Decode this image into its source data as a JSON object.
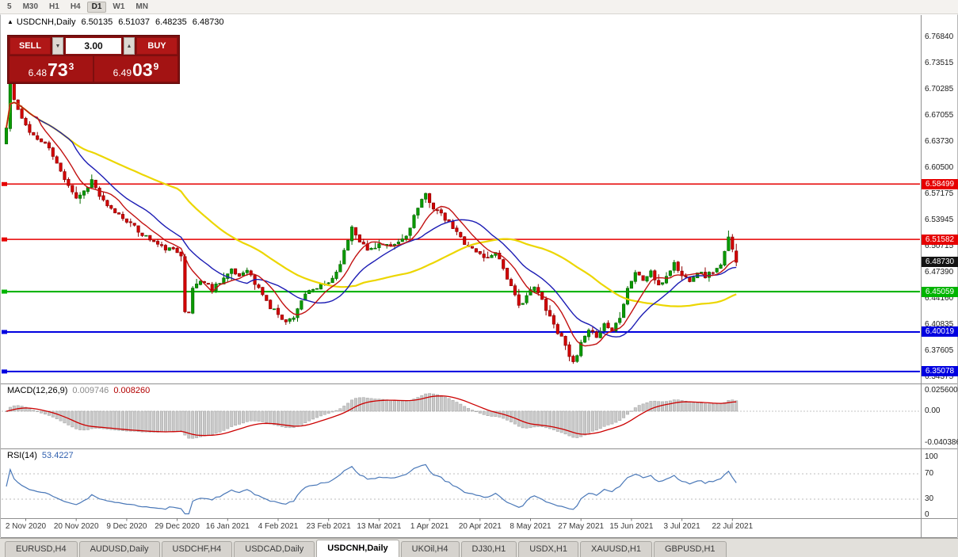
{
  "toolbar": {
    "periods": [
      "5",
      "M30",
      "H1",
      "H4",
      "D1",
      "W1",
      "MN"
    ],
    "active": "D1"
  },
  "chart": {
    "icon": "▲",
    "symbol": "USDCNH,Daily",
    "open": "6.50135",
    "high": "6.51037",
    "low": "6.48235",
    "close": "6.48730"
  },
  "trade_panel": {
    "sell_label": "SELL",
    "buy_label": "BUY",
    "volume": "3.00",
    "spinner_down": "▼",
    "spinner_up": "▲",
    "bid": {
      "prefix": "6.48",
      "big": "73",
      "sup": "3"
    },
    "ask": {
      "prefix": "6.49",
      "big": "03",
      "sup": "9"
    }
  },
  "price_axis": {
    "labels": [
      "6.76840",
      "6.73515",
      "6.70285",
      "6.67055",
      "6.63730",
      "6.60500",
      "6.57175",
      "6.53945",
      "6.50715",
      "6.47390",
      "6.44160",
      "6.40835",
      "6.37605",
      "6.34375"
    ],
    "current_price": "6.48730"
  },
  "hlines": [
    {
      "price": 6.58499,
      "label": "6.58499",
      "color": "#e60000",
      "width": 1.5
    },
    {
      "price": 6.51582,
      "label": "6.51582",
      "color": "#e60000",
      "width": 1.5
    },
    {
      "price": 6.45059,
      "label": "6.45059",
      "color": "#00b400",
      "width": 2.2
    },
    {
      "price": 6.40019,
      "label": "6.40019",
      "color": "#0000e0",
      "width": 2
    },
    {
      "price": 6.35078,
      "label": "6.35078",
      "color": "#0000e0",
      "width": 2
    }
  ],
  "macd": {
    "name": "MACD(12,26,9)",
    "value": "0.009746",
    "signal_value": "0.008260",
    "axis": [
      "0.025600",
      "0.00",
      "-0.040386"
    ]
  },
  "rsi": {
    "name": "RSI(14)",
    "value": "53.4227",
    "axis": [
      "100",
      "70",
      "30",
      "0"
    ]
  },
  "date_axis": [
    "2 Nov 2020",
    "20 Nov 2020",
    "9 Dec 2020",
    "29 Dec 2020",
    "16 Jan 2021",
    "4 Feb 2021",
    "23 Feb 2021",
    "13 Mar 2021",
    "1 Apr 2021",
    "20 Apr 2021",
    "8 May 2021",
    "27 May 2021",
    "15 Jun 2021",
    "3 Jul 2021",
    "22 Jul 2021"
  ],
  "tabs": [
    "EURUSD,H4",
    "AUDUSD,Daily",
    "USDCHF,H4",
    "USDCAD,Daily",
    "USDCNH,Daily",
    "UKOil,H4",
    "DJ30,H1",
    "USDX,H1",
    "XAUUSD,H1",
    "GBPUSD,H1"
  ],
  "active_tab": "USDCNH,Daily",
  "colors": {
    "up": "#0a9b00",
    "up_border": "#076b00",
    "down": "#d40000",
    "down_border": "#8f0000",
    "ma_fast": "#c21111",
    "ma_mid": "#1c1cb4",
    "ma_slow": "#ecd600",
    "macd_bar": "#c9c9c9",
    "macd_signal": "#cc0000",
    "rsi_line": "#4a78b8"
  },
  "chart_data": {
    "type": "candlestick",
    "symbol": "USDCNH",
    "timeframe": "Daily",
    "visible_price_high": 6.7684,
    "visible_price_low": 6.34375,
    "candles_count": 189,
    "last_candle": {
      "open": 6.50135,
      "high": 6.51037,
      "low": 6.48235,
      "close": 6.4873
    },
    "indicators": {
      "macd": [
        12,
        26,
        9
      ],
      "rsi": 14
    },
    "ma_periods": [
      8,
      17,
      45
    ],
    "anchors": [
      [
        0,
        6.655
      ],
      [
        1,
        6.715
      ],
      [
        2,
        6.69
      ],
      [
        4,
        6.665
      ],
      [
        6,
        6.652
      ],
      [
        8,
        6.64
      ],
      [
        10,
        6.636
      ],
      [
        12,
        6.62
      ],
      [
        14,
        6.6
      ],
      [
        16,
        6.585
      ],
      [
        18,
        6.568
      ],
      [
        20,
        6.576
      ],
      [
        22,
        6.59
      ],
      [
        24,
        6.57
      ],
      [
        26,
        6.556
      ],
      [
        28,
        6.55
      ],
      [
        31,
        6.54
      ],
      [
        34,
        6.526
      ],
      [
        37,
        6.516
      ],
      [
        40,
        6.506
      ],
      [
        43,
        6.502
      ],
      [
        45,
        6.498
      ],
      [
        46,
        6.428
      ],
      [
        47,
        6.422
      ],
      [
        48,
        6.455
      ],
      [
        50,
        6.465
      ],
      [
        53,
        6.455
      ],
      [
        56,
        6.468
      ],
      [
        58,
        6.476
      ],
      [
        60,
        6.47
      ],
      [
        62,
        6.48
      ],
      [
        64,
        6.46
      ],
      [
        66,
        6.448
      ],
      [
        68,
        6.43
      ],
      [
        70,
        6.424
      ],
      [
        72,
        6.412
      ],
      [
        74,
        6.42
      ],
      [
        76,
        6.44
      ],
      [
        78,
        6.45
      ],
      [
        80,
        6.455
      ],
      [
        83,
        6.462
      ],
      [
        85,
        6.475
      ],
      [
        87,
        6.5
      ],
      [
        89,
        6.532
      ],
      [
        91,
        6.515
      ],
      [
        93,
        6.502
      ],
      [
        96,
        6.51
      ],
      [
        99,
        6.506
      ],
      [
        101,
        6.512
      ],
      [
        103,
        6.52
      ],
      [
        105,
        6.545
      ],
      [
        107,
        6.563
      ],
      [
        108,
        6.572
      ],
      [
        110,
        6.556
      ],
      [
        112,
        6.546
      ],
      [
        115,
        6.53
      ],
      [
        118,
        6.512
      ],
      [
        121,
        6.5
      ],
      [
        124,
        6.492
      ],
      [
        126,
        6.502
      ],
      [
        128,
        6.48
      ],
      [
        130,
        6.456
      ],
      [
        132,
        6.432
      ],
      [
        134,
        6.446
      ],
      [
        136,
        6.456
      ],
      [
        138,
        6.44
      ],
      [
        140,
        6.42
      ],
      [
        142,
        6.4
      ],
      [
        144,
        6.386
      ],
      [
        145,
        6.372
      ],
      [
        146,
        6.36
      ],
      [
        147,
        6.37
      ],
      [
        148,
        6.386
      ],
      [
        150,
        6.4
      ],
      [
        152,
        6.396
      ],
      [
        154,
        6.41
      ],
      [
        156,
        6.402
      ],
      [
        158,
        6.42
      ],
      [
        160,
        6.455
      ],
      [
        162,
        6.475
      ],
      [
        164,
        6.465
      ],
      [
        166,
        6.476
      ],
      [
        168,
        6.456
      ],
      [
        170,
        6.47
      ],
      [
        172,
        6.486
      ],
      [
        174,
        6.47
      ],
      [
        176,
        6.466
      ],
      [
        178,
        6.476
      ],
      [
        180,
        6.47
      ],
      [
        182,
        6.476
      ],
      [
        184,
        6.482
      ],
      [
        186,
        6.517
      ],
      [
        187,
        6.506
      ],
      [
        188,
        6.4873
      ]
    ]
  }
}
